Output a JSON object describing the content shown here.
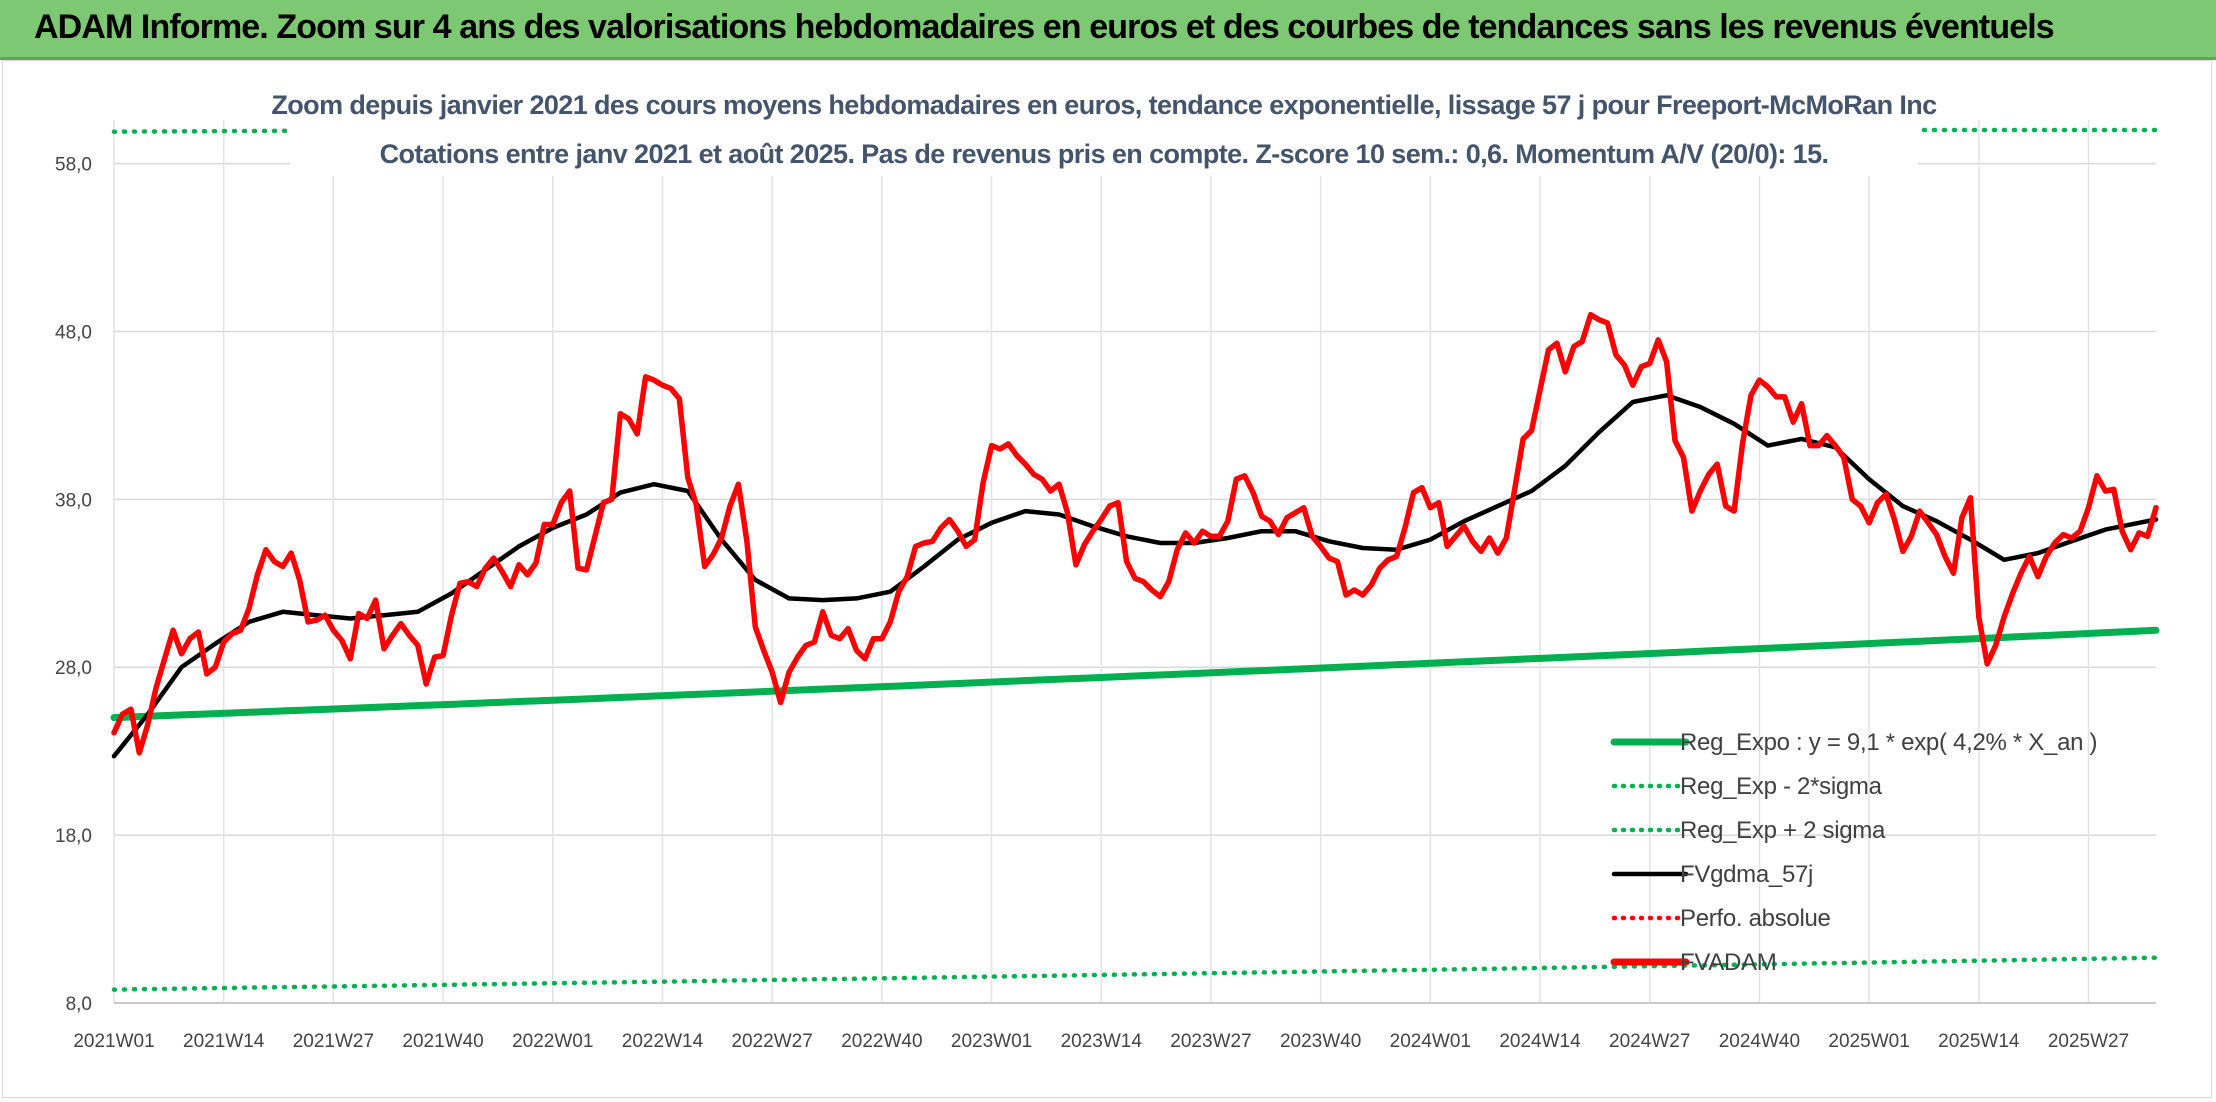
{
  "banner": {
    "title": "ADAM Informe. Zoom sur 4 ans des valorisations hebdomadaires en euros et des courbes de tendances sans les revenus éventuels",
    "background": "#7dc873"
  },
  "chart_data": {
    "type": "line",
    "title_line1": "Zoom depuis janvier 2021 des cours moyens hebdomadaires en euros, tendance exponentielle, lissage 57 j pour Freeport-McMoRan Inc",
    "title_line2": "Cotations entre janv 2021 et août 2025. Pas de revenus pris en compte. Z-score 10 sem.: 0,6. Momentum A/V (20/0): 15.",
    "ylim": [
      8,
      60
    ],
    "y_ticks": [
      8,
      18,
      28,
      38,
      48,
      58
    ],
    "y_tick_labels": [
      "8,0",
      "18,0",
      "28,0",
      "38,0",
      "48,0",
      "58,0"
    ],
    "x_tick_labels": [
      "2021W01",
      "2021W14",
      "2021W27",
      "2021W40",
      "2022W01",
      "2022W14",
      "2022W27",
      "2022W40",
      "2023W01",
      "2023W14",
      "2023W27",
      "2023W40",
      "2024W01",
      "2024W14",
      "2024W27",
      "2024W40",
      "2025W01",
      "2025W14",
      "2025W27"
    ],
    "weeks_per_tick": 13,
    "grid": true,
    "legend_position": "bottom-right",
    "legend": [
      {
        "label": "Reg_Expo : y = 9,1 * exp( 4,2% *  X_an )",
        "color": "#00b050",
        "style": "solid-thick"
      },
      {
        "label": "Reg_Exp - 2*sigma",
        "color": "#00b050",
        "style": "dotted"
      },
      {
        "label": "Reg_Exp + 2 sigma",
        "color": "#00b050",
        "style": "dotted"
      },
      {
        "label": "FVgdma_57j",
        "color": "#000000",
        "style": "solid"
      },
      {
        "label": "Perfo. absolue",
        "color": "#ff0000",
        "style": "dotted"
      },
      {
        "label": "FVADAM",
        "color": "#ff0000",
        "style": "solid-thick"
      }
    ],
    "series": [
      {
        "name": "FVADAM",
        "color": "#ff0000",
        "x": [
          0,
          1,
          2,
          3,
          4,
          5,
          6,
          7,
          8,
          9,
          10,
          11,
          12,
          13,
          14,
          15,
          16,
          17,
          18,
          19,
          20,
          21,
          22,
          23,
          24,
          25,
          26,
          27,
          28,
          29,
          30,
          31,
          32,
          33,
          34,
          35,
          36,
          37,
          38,
          39,
          40,
          41,
          42,
          43,
          44,
          45,
          46,
          47,
          48,
          49,
          50,
          51,
          52,
          53,
          54,
          55,
          56,
          57,
          58,
          59,
          60,
          61,
          62,
          63,
          64,
          65,
          66,
          67,
          68,
          69,
          70,
          71,
          72,
          73,
          74,
          75,
          76,
          77,
          78,
          79,
          80,
          81,
          82,
          83,
          84,
          85,
          86,
          87,
          88,
          89,
          90,
          91,
          92,
          93,
          94,
          95,
          96,
          97,
          98,
          99,
          100,
          101,
          102,
          103,
          104,
          105,
          106,
          107,
          108,
          109,
          110,
          111,
          112,
          113,
          114,
          115,
          116,
          117,
          118,
          119,
          120,
          121,
          122,
          123,
          124,
          125,
          126,
          127,
          128,
          129,
          130,
          131,
          132,
          133,
          134,
          135,
          136,
          137,
          138,
          139,
          140,
          141,
          142,
          143,
          144,
          145,
          146,
          147,
          148,
          149,
          150,
          151,
          152,
          153,
          154,
          155,
          156,
          157,
          158,
          159,
          160,
          161,
          162,
          163,
          164,
          165,
          166,
          167,
          168,
          169,
          170,
          171,
          172,
          173,
          174,
          175,
          176,
          177,
          178,
          179,
          180,
          181,
          182,
          183,
          184,
          185,
          186,
          187,
          188,
          189,
          190,
          191,
          192,
          193,
          194,
          195,
          196,
          197,
          198,
          199,
          200,
          201,
          202,
          203,
          204,
          205,
          206,
          207,
          208,
          209,
          210,
          211,
          212,
          213,
          214,
          215,
          216,
          217,
          218,
          219,
          220,
          221,
          222,
          223,
          224,
          225,
          226,
          227,
          228,
          229,
          230,
          231,
          232,
          233,
          234,
          235,
          236,
          237,
          238,
          239,
          240,
          241,
          242
        ],
        "y": [
          24.1,
          25.2,
          25.5,
          22.9,
          24.6,
          26.8,
          28.5,
          30.2,
          28.8,
          29.7,
          30.1,
          27.6,
          28.0,
          29.5,
          30.0,
          30.2,
          31.5,
          33.5,
          35.0,
          34.3,
          34.0,
          34.8,
          33.2,
          30.7,
          30.8,
          31.1,
          30.2,
          29.6,
          28.5,
          31.2,
          30.9,
          32.0,
          29.1,
          29.9,
          30.6,
          29.9,
          29.3,
          27.0,
          28.6,
          28.7,
          31.1,
          33.0,
          33.1,
          32.8,
          33.9,
          34.5,
          33.7,
          32.8,
          34.1,
          33.5,
          34.2,
          36.5,
          36.5,
          37.8,
          38.5,
          33.9,
          33.8,
          35.8,
          37.8,
          38.0,
          43.1,
          42.8,
          41.9,
          45.3,
          45.1,
          44.8,
          44.6,
          44.0,
          39.3,
          37.7,
          34.0,
          34.7,
          35.7,
          37.6,
          38.9,
          35.5,
          30.4,
          29.0,
          27.7,
          25.9,
          27.7,
          28.6,
          29.3,
          29.5,
          31.3,
          29.9,
          29.7,
          30.3,
          29.0,
          28.5,
          29.7,
          29.7,
          30.7,
          32.5,
          33.4,
          35.2,
          35.4,
          35.5,
          36.3,
          36.8,
          36.1,
          35.2,
          35.6,
          39.0,
          41.2,
          41.0,
          41.3,
          40.6,
          40.1,
          39.5,
          39.2,
          38.5,
          38.9,
          37.2,
          34.1,
          35.3,
          36.1,
          36.8,
          37.6,
          37.8,
          34.3,
          33.3,
          33.1,
          32.6,
          32.2,
          33.1,
          35.0,
          36.0,
          35.4,
          36.1,
          35.8,
          35.8,
          36.7,
          39.2,
          39.4,
          38.4,
          37.0,
          36.7,
          35.9,
          36.9,
          37.2,
          37.5,
          35.8,
          35.2,
          34.5,
          34.3,
          32.3,
          32.6,
          32.3,
          32.9,
          33.9,
          34.4,
          34.6,
          36.3,
          38.4,
          38.7,
          37.5,
          37.8,
          35.2,
          35.8,
          36.4,
          35.5,
          34.9,
          35.7,
          34.8,
          35.7,
          38.6,
          41.6,
          42.1,
          44.5,
          46.9,
          47.3,
          45.6,
          47.1,
          47.4,
          49.0,
          48.7,
          48.5,
          46.6,
          46.0,
          44.8,
          45.9,
          46.1,
          47.5,
          46.2,
          41.5,
          40.5,
          37.3,
          38.5,
          39.5,
          40.1,
          37.6,
          37.3,
          41.3,
          44.2,
          45.1,
          44.7,
          44.1,
          44.1,
          42.6,
          43.7,
          41.2,
          41.2,
          41.8,
          41.2,
          40.5,
          38.0,
          37.6,
          36.6,
          37.8,
          38.3,
          36.8,
          34.9,
          35.8,
          37.3,
          36.6,
          35.9,
          34.6,
          33.6,
          36.9,
          38.1,
          31.0,
          28.2,
          29.3,
          31.0,
          32.4,
          33.6,
          34.6,
          33.4,
          34.6,
          35.4,
          35.9,
          35.7,
          36.1,
          37.5,
          39.4,
          38.5,
          38.6,
          36.1,
          35.0,
          36.0,
          35.8,
          37.5
        ]
      },
      {
        "name": "FVgdma_57j",
        "color": "#000000",
        "x": [
          0,
          4,
          8,
          12,
          16,
          20,
          24,
          28,
          32,
          36,
          40,
          44,
          48,
          52,
          56,
          60,
          64,
          68,
          72,
          76,
          80,
          84,
          88,
          92,
          96,
          100,
          104,
          108,
          112,
          116,
          120,
          124,
          128,
          132,
          136,
          140,
          144,
          148,
          152,
          156,
          160,
          164,
          168,
          172,
          176,
          180,
          184,
          188,
          192,
          196,
          200,
          204,
          208,
          212,
          216,
          220,
          224,
          228,
          232,
          236,
          240,
          242
        ],
        "y": [
          22.7,
          25.2,
          28.0,
          29.4,
          30.7,
          31.3,
          31.1,
          30.9,
          31.1,
          31.3,
          32.4,
          33.8,
          35.2,
          36.3,
          37.1,
          38.4,
          38.9,
          38.5,
          35.6,
          33.2,
          32.1,
          32.0,
          32.1,
          32.5,
          34.0,
          35.6,
          36.6,
          37.3,
          37.1,
          36.4,
          35.8,
          35.4,
          35.4,
          35.7,
          36.1,
          36.1,
          35.5,
          35.1,
          35.0,
          35.6,
          36.7,
          37.6,
          38.5,
          40.0,
          42.0,
          43.8,
          44.2,
          43.5,
          42.5,
          41.2,
          41.6,
          41.1,
          39.2,
          37.6,
          36.7,
          35.6,
          34.4,
          34.8,
          35.5,
          36.2,
          36.6,
          36.8
        ]
      },
      {
        "name": "Reg_Expo",
        "color": "#00b050",
        "x": [
          0,
          242
        ],
        "y": [
          25.0,
          30.2
        ]
      },
      {
        "name": "Reg_Exp - 2*sigma",
        "color": "#00b050",
        "x": [
          0,
          242
        ],
        "y": [
          8.8,
          10.7
        ]
      },
      {
        "name": "Reg_Exp + 2 sigma",
        "color": "#00b050",
        "x": [
          0,
          242
        ],
        "y": [
          59.9,
          60.5
        ]
      }
    ]
  }
}
